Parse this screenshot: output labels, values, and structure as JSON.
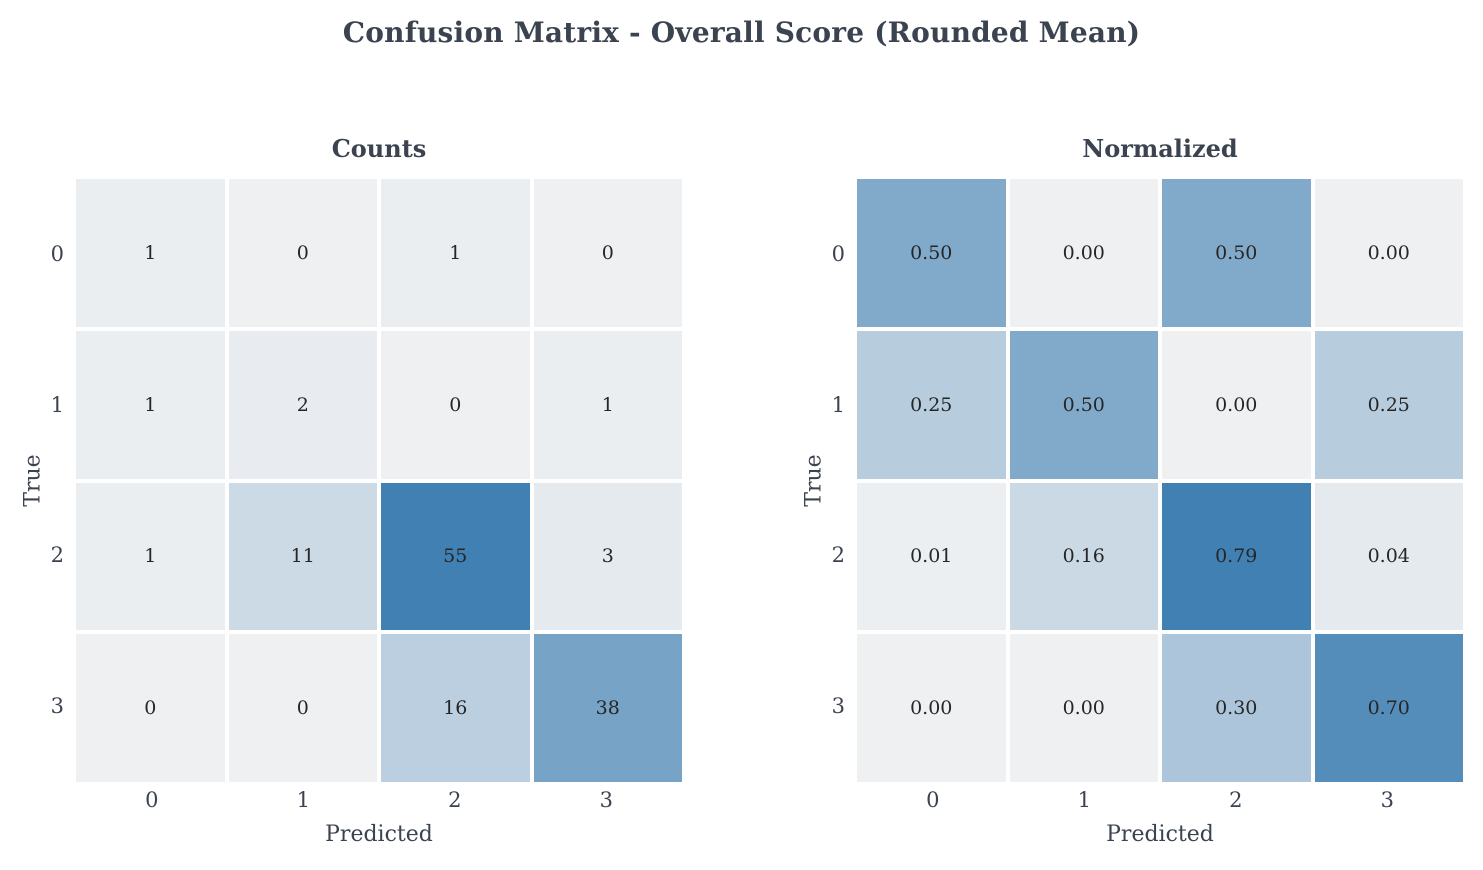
{
  "title": "Confusion Matrix - Overall Score (Rounded Mean)",
  "colors": {
    "background": "#ffffff",
    "heading_text": "#3b4350",
    "tick_text": "#3b4350",
    "annotation_text": "#262626",
    "cmap_start": "#eef0f2",
    "cmap_end": "#4180b3",
    "grid_gap": "#ffffff"
  },
  "chart_data": [
    {
      "type": "heatmap",
      "title": "Counts",
      "xlabel": "Predicted",
      "ylabel": "True",
      "x_ticks": [
        "0",
        "1",
        "2",
        "3"
      ],
      "y_ticks": [
        "0",
        "1",
        "2",
        "3"
      ],
      "values": [
        [
          1,
          0,
          1,
          0
        ],
        [
          1,
          2,
          0,
          1
        ],
        [
          1,
          11,
          55,
          3
        ],
        [
          0,
          0,
          16,
          38
        ]
      ],
      "annotations": [
        [
          "1",
          "0",
          "1",
          "0"
        ],
        [
          "1",
          "2",
          "0",
          "1"
        ],
        [
          "1",
          "11",
          "55",
          "3"
        ],
        [
          "0",
          "0",
          "16",
          "38"
        ]
      ],
      "vmin": 0,
      "vmax": 55,
      "legend": "none",
      "grid": false
    },
    {
      "type": "heatmap",
      "title": "Normalized",
      "xlabel": "Predicted",
      "ylabel": "True",
      "x_ticks": [
        "0",
        "1",
        "2",
        "3"
      ],
      "y_ticks": [
        "0",
        "1",
        "2",
        "3"
      ],
      "values": [
        [
          0.5,
          0.0,
          0.5,
          0.0
        ],
        [
          0.25,
          0.5,
          0.0,
          0.25
        ],
        [
          0.01,
          0.16,
          0.79,
          0.04
        ],
        [
          0.0,
          0.0,
          0.3,
          0.7
        ]
      ],
      "annotations": [
        [
          "0.50",
          "0.00",
          "0.50",
          "0.00"
        ],
        [
          "0.25",
          "0.50",
          "0.00",
          "0.25"
        ],
        [
          "0.01",
          "0.16",
          "0.79",
          "0.04"
        ],
        [
          "0.00",
          "0.00",
          "0.30",
          "0.70"
        ]
      ],
      "vmin": 0,
      "vmax": 0.79,
      "legend": "none",
      "grid": false
    }
  ]
}
